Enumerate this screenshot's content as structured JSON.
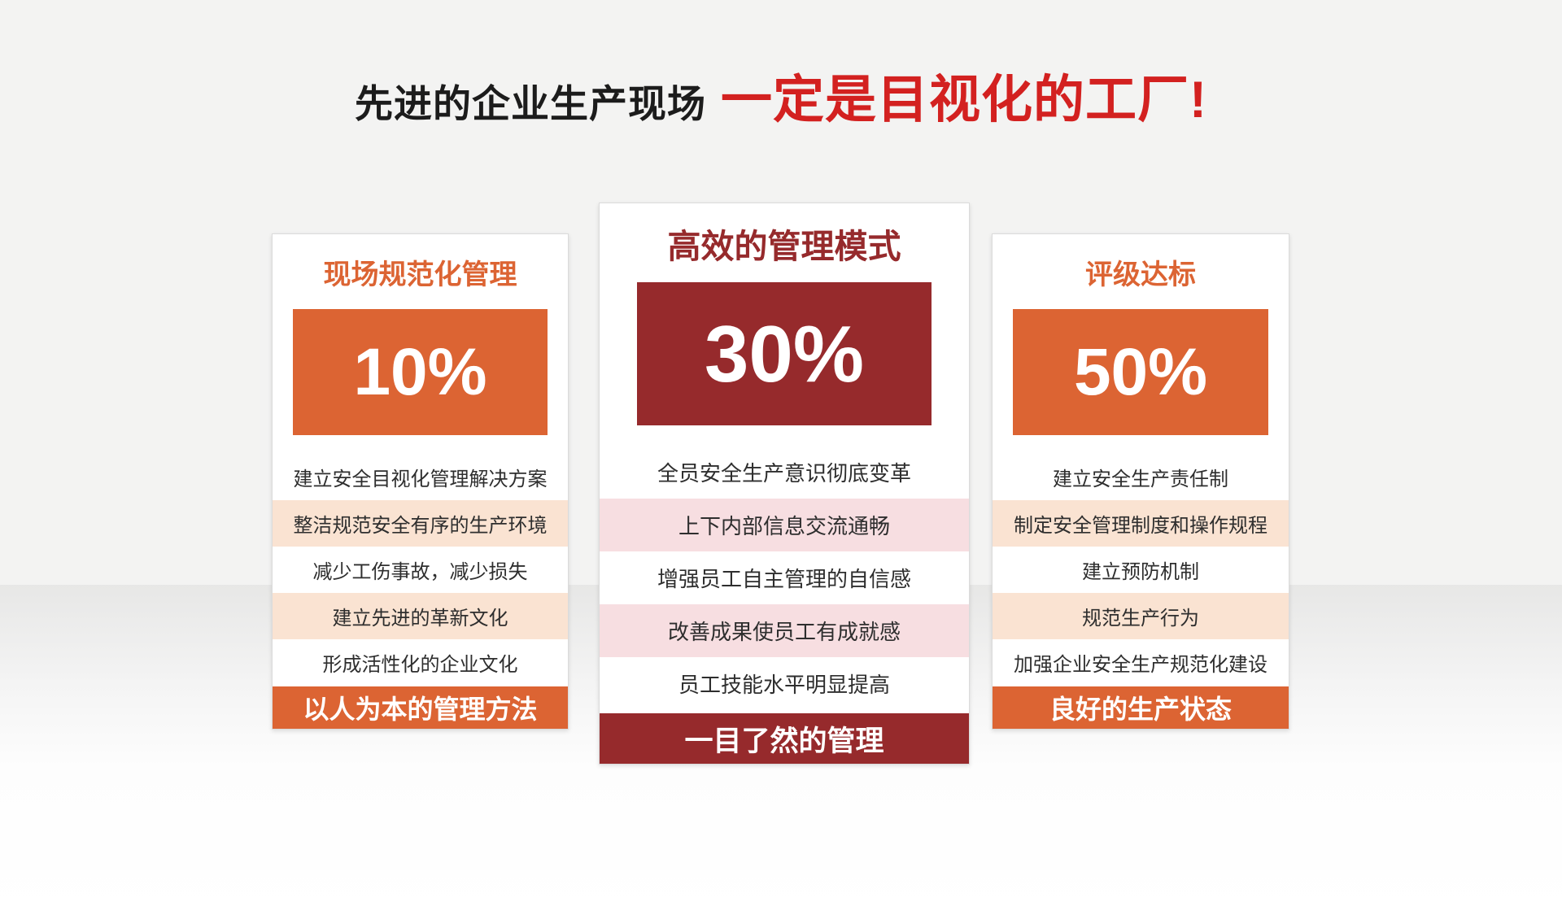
{
  "title": {
    "black_part": "先进的企业生产现场",
    "red_part": "一定是目视化的工厂!"
  },
  "colors": {
    "title_red": "#d32120",
    "title_black": "#1c1c1c",
    "orange": "#dc6433",
    "orange_light_row": "#fae3d2",
    "dark_red": "#962a2c",
    "red_light_row": "#f7dee1",
    "background_top": "#f3f3f2",
    "background_floor": "#e7e7e6"
  },
  "cards": [
    {
      "heading": "现场规范化管理",
      "percent": "10%",
      "items": [
        "建立安全目视化管理解决方案",
        "整洁规范安全有序的生产环境",
        "减少工伤事故，减少损失",
        "建立先进的革新文化",
        "形成活性化的企业文化"
      ],
      "footer": "以人为本的管理方法"
    },
    {
      "heading": "高效的管理模式",
      "percent": "30%",
      "items": [
        "全员安全生产意识彻底变革",
        "上下内部信息交流通畅",
        "增强员工自主管理的自信感",
        "改善成果使员工有成就感",
        "员工技能水平明显提高"
      ],
      "footer": "一目了然的管理"
    },
    {
      "heading": "评级达标",
      "percent": "50%",
      "items": [
        "建立安全生产责任制",
        "制定安全管理制度和操作规程",
        "建立预防机制",
        "规范生产行为",
        "加强企业安全生产规范化建设"
      ],
      "footer": "良好的生产状态"
    }
  ]
}
